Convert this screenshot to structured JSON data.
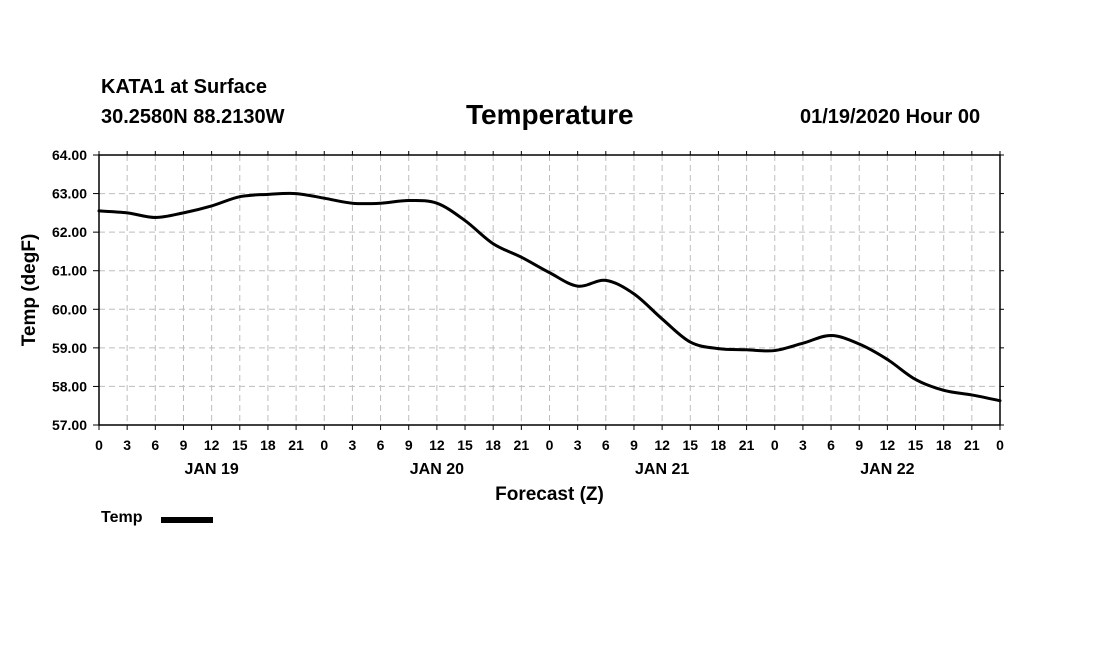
{
  "header": {
    "station": "KATA1 at Surface",
    "coords": "30.2580N 88.2130W",
    "title": "Temperature",
    "datetime": "01/19/2020 Hour 00"
  },
  "chart_data": {
    "type": "line",
    "title": "Temperature",
    "xlabel": "Forecast (Z)",
    "ylabel": "Temp (degF)",
    "ylim": [
      57.0,
      64.0
    ],
    "yticks": [
      "57.00",
      "58.00",
      "59.00",
      "60.00",
      "61.00",
      "62.00",
      "63.00",
      "64.00"
    ],
    "xlim": [
      0,
      96
    ],
    "xticks": [
      "0",
      "3",
      "6",
      "9",
      "12",
      "15",
      "18",
      "21",
      "0",
      "3",
      "6",
      "9",
      "12",
      "15",
      "18",
      "21",
      "0",
      "3",
      "6",
      "9",
      "12",
      "15",
      "18",
      "21",
      "0",
      "3",
      "6",
      "9",
      "12",
      "15",
      "18",
      "21",
      "0"
    ],
    "days": [
      "JAN 19",
      "JAN 20",
      "JAN 21",
      "JAN 22"
    ],
    "grid": true,
    "legend_position": "bottom-left",
    "series": [
      {
        "name": "Temp",
        "color": "#000000",
        "x": [
          0,
          3,
          6,
          9,
          12,
          15,
          18,
          21,
          24,
          27,
          30,
          33,
          36,
          39,
          42,
          45,
          48,
          51,
          54,
          57,
          60,
          63,
          66,
          69,
          72,
          75,
          78,
          81,
          84,
          87,
          90,
          93,
          96
        ],
        "values": [
          62.55,
          62.5,
          62.38,
          62.5,
          62.68,
          62.92,
          62.98,
          63.0,
          62.88,
          62.75,
          62.75,
          62.82,
          62.75,
          62.3,
          61.7,
          61.35,
          60.95,
          60.6,
          60.75,
          60.4,
          59.75,
          59.15,
          58.98,
          58.95,
          58.93,
          59.12,
          59.32,
          59.1,
          58.7,
          58.18,
          57.9,
          57.78,
          57.63
        ]
      }
    ]
  }
}
